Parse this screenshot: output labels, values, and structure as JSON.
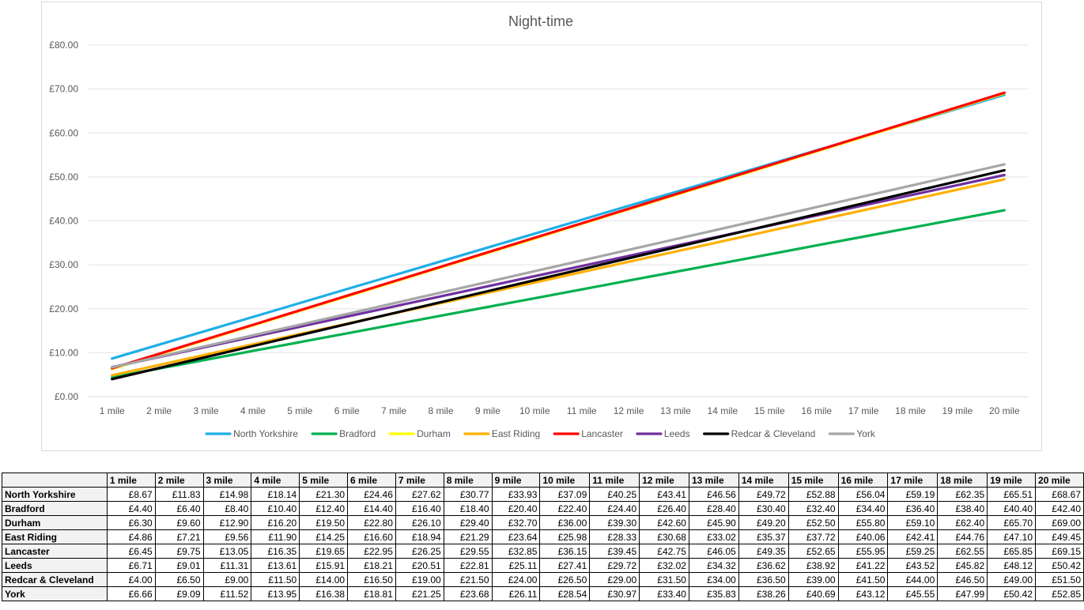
{
  "chart_data": {
    "type": "line",
    "title": "Night-time",
    "xlabel": "",
    "ylabel": "",
    "categories": [
      "1 mile",
      "2 mile",
      "3 mile",
      "4 mile",
      "5 mile",
      "6 mile",
      "7 mile",
      "8 mile",
      "9 mile",
      "10 mile",
      "11 mile",
      "12 mile",
      "13 mile",
      "14 mile",
      "15 mile",
      "16 mile",
      "17 mile",
      "18 mile",
      "19 mile",
      "20 mile"
    ],
    "ylim": [
      0,
      80
    ],
    "yticks": [
      "£0.00",
      "£10.00",
      "£20.00",
      "£30.00",
      "£40.00",
      "£50.00",
      "£60.00",
      "£70.00",
      "£80.00"
    ],
    "grid": true,
    "legend_position": "bottom",
    "series": [
      {
        "name": "North Yorkshire",
        "color": "#1eaee6",
        "values": [
          8.67,
          11.83,
          14.98,
          18.14,
          21.3,
          24.46,
          27.62,
          30.77,
          33.93,
          37.09,
          40.25,
          43.41,
          46.56,
          49.72,
          52.88,
          56.04,
          59.19,
          62.35,
          65.51,
          68.67
        ]
      },
      {
        "name": "Bradford",
        "color": "#00b050",
        "values": [
          4.4,
          6.4,
          8.4,
          10.4,
          12.4,
          14.4,
          16.4,
          18.4,
          20.4,
          22.4,
          24.4,
          26.4,
          28.4,
          30.4,
          32.4,
          34.4,
          36.4,
          38.4,
          40.4,
          42.4
        ]
      },
      {
        "name": "Durham",
        "color": "#ffff00",
        "values": [
          6.3,
          9.6,
          12.9,
          16.2,
          19.5,
          22.8,
          26.1,
          29.4,
          32.7,
          36.0,
          39.3,
          42.6,
          45.9,
          49.2,
          52.5,
          55.8,
          59.1,
          62.4,
          65.7,
          69.0
        ]
      },
      {
        "name": "East Riding",
        "color": "#ffb000",
        "values": [
          4.86,
          7.21,
          9.56,
          11.9,
          14.25,
          16.6,
          18.94,
          21.29,
          23.64,
          25.98,
          28.33,
          30.68,
          33.02,
          35.37,
          37.72,
          40.06,
          42.41,
          44.76,
          47.1,
          49.45
        ]
      },
      {
        "name": "Lancaster",
        "color": "#ff0000",
        "values": [
          6.45,
          9.75,
          13.05,
          16.35,
          19.65,
          22.95,
          26.25,
          29.55,
          32.85,
          36.15,
          39.45,
          42.75,
          46.05,
          49.35,
          52.65,
          55.95,
          59.25,
          62.55,
          65.85,
          69.15
        ]
      },
      {
        "name": "Leeds",
        "color": "#7030a0",
        "values": [
          6.71,
          9.01,
          11.31,
          13.61,
          15.91,
          18.21,
          20.51,
          22.81,
          25.11,
          27.41,
          29.72,
          32.02,
          34.32,
          36.62,
          38.92,
          41.22,
          43.52,
          45.82,
          48.12,
          50.42
        ]
      },
      {
        "name": "Redcar & Cleveland",
        "color": "#000000",
        "values": [
          4.0,
          6.5,
          9.0,
          11.5,
          14.0,
          16.5,
          19.0,
          21.5,
          24.0,
          26.5,
          29.0,
          31.5,
          34.0,
          36.5,
          39.0,
          41.5,
          44.0,
          46.5,
          49.0,
          51.5
        ]
      },
      {
        "name": "York",
        "color": "#a6a6a6",
        "values": [
          6.66,
          9.09,
          11.52,
          13.95,
          16.38,
          18.81,
          21.25,
          23.68,
          26.11,
          28.54,
          30.97,
          33.4,
          35.83,
          38.26,
          40.69,
          43.12,
          45.55,
          47.99,
          50.42,
          52.85
        ]
      }
    ]
  },
  "table": {
    "corner": "",
    "headers": [
      "1 mile",
      "2 mile",
      "3 mile",
      "4 mile",
      "5 mile",
      "6 mile",
      "7 mile",
      "8 mile",
      "9 mile",
      "10 mile",
      "11 mile",
      "12 mile",
      "13 mile",
      "14 mile",
      "15 mile",
      "16 mile",
      "17 mile",
      "18 mile",
      "19 mile",
      "20 mile"
    ],
    "rows": [
      {
        "label": "North Yorkshire",
        "cells": [
          "£8.67",
          "£11.83",
          "£14.98",
          "£18.14",
          "£21.30",
          "£24.46",
          "£27.62",
          "£30.77",
          "£33.93",
          "£37.09",
          "£40.25",
          "£43.41",
          "£46.56",
          "£49.72",
          "£52.88",
          "£56.04",
          "£59.19",
          "£62.35",
          "£65.51",
          "£68.67"
        ]
      },
      {
        "label": "Bradford",
        "cells": [
          "£4.40",
          "£6.40",
          "£8.40",
          "£10.40",
          "£12.40",
          "£14.40",
          "£16.40",
          "£18.40",
          "£20.40",
          "£22.40",
          "£24.40",
          "£26.40",
          "£28.40",
          "£30.40",
          "£32.40",
          "£34.40",
          "£36.40",
          "£38.40",
          "£40.40",
          "£42.40"
        ]
      },
      {
        "label": "Durham",
        "cells": [
          "£6.30",
          "£9.60",
          "£12.90",
          "£16.20",
          "£19.50",
          "£22.80",
          "£26.10",
          "£29.40",
          "£32.70",
          "£36.00",
          "£39.30",
          "£42.60",
          "£45.90",
          "£49.20",
          "£52.50",
          "£55.80",
          "£59.10",
          "£62.40",
          "£65.70",
          "£69.00"
        ]
      },
      {
        "label": "East Riding",
        "cells": [
          "£4.86",
          "£7.21",
          "£9.56",
          "£11.90",
          "£14.25",
          "£16.60",
          "£18.94",
          "£21.29",
          "£23.64",
          "£25.98",
          "£28.33",
          "£30.68",
          "£33.02",
          "£35.37",
          "£37.72",
          "£40.06",
          "£42.41",
          "£44.76",
          "£47.10",
          "£49.45"
        ]
      },
      {
        "label": "Lancaster",
        "cells": [
          "£6.45",
          "£9.75",
          "£13.05",
          "£16.35",
          "£19.65",
          "£22.95",
          "£26.25",
          "£29.55",
          "£32.85",
          "£36.15",
          "£39.45",
          "£42.75",
          "£46.05",
          "£49.35",
          "£52.65",
          "£55.95",
          "£59.25",
          "£62.55",
          "£65.85",
          "£69.15"
        ]
      },
      {
        "label": "Leeds",
        "cells": [
          "£6.71",
          "£9.01",
          "£11.31",
          "£13.61",
          "£15.91",
          "£18.21",
          "£20.51",
          "£22.81",
          "£25.11",
          "£27.41",
          "£29.72",
          "£32.02",
          "£34.32",
          "£36.62",
          "£38.92",
          "£41.22",
          "£43.52",
          "£45.82",
          "£48.12",
          "£50.42"
        ]
      },
      {
        "label": "Redcar & Cleveland",
        "cells": [
          "£4.00",
          "£6.50",
          "£9.00",
          "£11.50",
          "£14.00",
          "£16.50",
          "£19.00",
          "£21.50",
          "£24.00",
          "£26.50",
          "£29.00",
          "£31.50",
          "£34.00",
          "£36.50",
          "£39.00",
          "£41.50",
          "£44.00",
          "£46.50",
          "£49.00",
          "£51.50"
        ]
      },
      {
        "label": "York",
        "cells": [
          "£6.66",
          "£9.09",
          "£11.52",
          "£13.95",
          "£16.38",
          "£18.81",
          "£21.25",
          "£23.68",
          "£26.11",
          "£28.54",
          "£30.97",
          "£33.40",
          "£35.83",
          "£38.26",
          "£40.69",
          "£43.12",
          "£45.55",
          "£47.99",
          "£50.42",
          "£52.85"
        ]
      }
    ]
  }
}
